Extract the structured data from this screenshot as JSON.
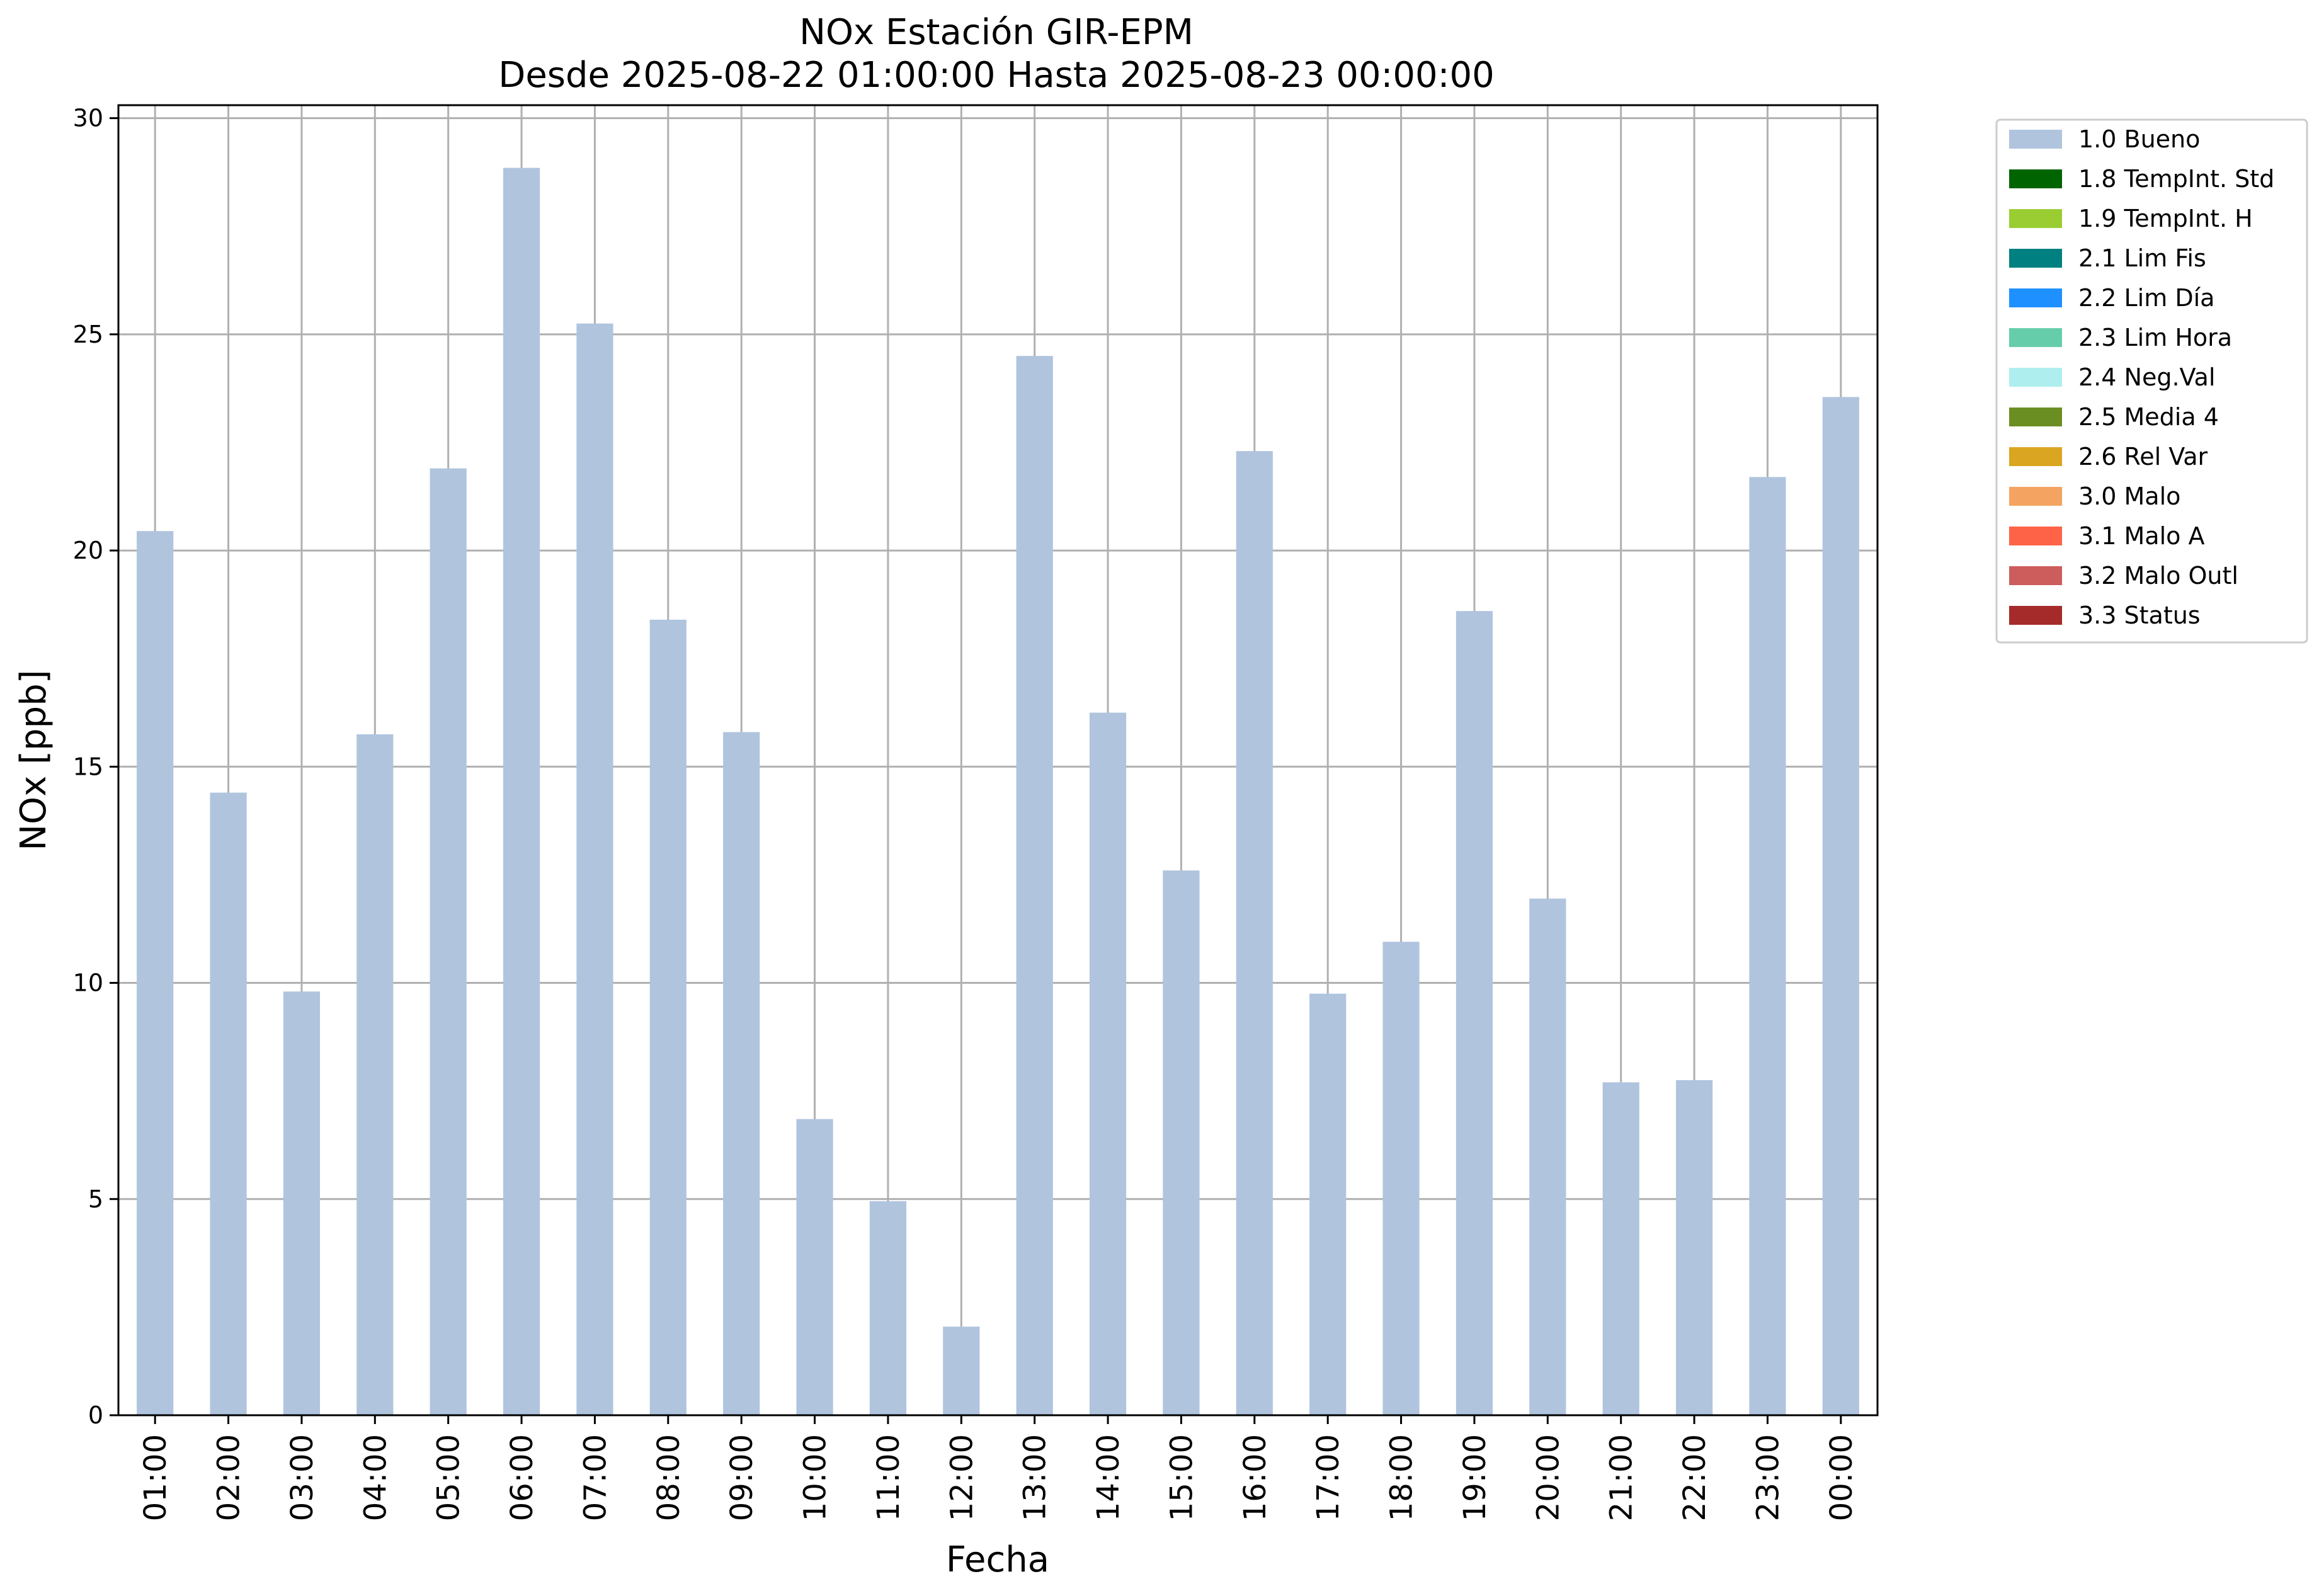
{
  "chart_data": {
    "type": "bar",
    "title": "NOx Estación GIR-EPM",
    "subtitle": "Desde 2025-08-22 01:00:00 Hasta 2025-08-23 00:00:00",
    "xlabel": "Fecha",
    "ylabel": "NOx [ppb]",
    "ylim": [
      0,
      30.3
    ],
    "yticks": [
      0,
      5,
      10,
      15,
      20,
      25,
      30
    ],
    "grid": true,
    "legend_position": "outside-top-right",
    "categories": [
      "01:00",
      "02:00",
      "03:00",
      "04:00",
      "05:00",
      "06:00",
      "07:00",
      "08:00",
      "09:00",
      "10:00",
      "11:00",
      "12:00",
      "13:00",
      "14:00",
      "15:00",
      "16:00",
      "17:00",
      "18:00",
      "19:00",
      "20:00",
      "21:00",
      "22:00",
      "23:00",
      "00:00"
    ],
    "values": [
      20.45,
      14.4,
      9.8,
      15.75,
      21.9,
      28.85,
      25.25,
      18.4,
      15.8,
      6.85,
      4.95,
      2.05,
      24.5,
      16.25,
      12.6,
      22.3,
      9.75,
      10.95,
      18.6,
      11.95,
      7.7,
      7.75,
      21.7,
      23.55
    ],
    "bar_color": "#b0c4de",
    "legend": [
      {
        "label": "1.0 Bueno",
        "color": "#b0c4de"
      },
      {
        "label": "1.8 TempInt. Std",
        "color": "#006400"
      },
      {
        "label": "1.9 TempInt. H",
        "color": "#9acd32"
      },
      {
        "label": "2.1 Lim Fis",
        "color": "#008080"
      },
      {
        "label": "2.2 Lim Día",
        "color": "#1e90ff"
      },
      {
        "label": "2.3 Lim Hora",
        "color": "#66cdaa"
      },
      {
        "label": "2.4 Neg.Val",
        "color": "#afeeee"
      },
      {
        "label": "2.5 Media 4",
        "color": "#6b8e23"
      },
      {
        "label": "2.6 Rel Var",
        "color": "#daa520"
      },
      {
        "label": "3.0 Malo",
        "color": "#f4a460"
      },
      {
        "label": "3.1 Malo A",
        "color": "#ff6347"
      },
      {
        "label": "3.2 Malo Outl",
        "color": "#cd5c5c"
      },
      {
        "label": "3.3 Status",
        "color": "#a52a2a"
      }
    ]
  }
}
